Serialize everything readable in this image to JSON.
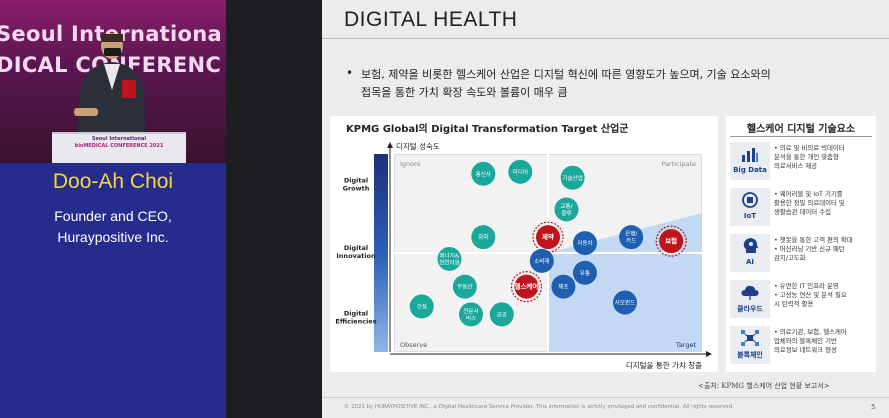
{
  "speaker": {
    "banner_line1": "Seoul Internationa",
    "banner_line2": "DICAL CONFERENC",
    "podium_line1": "Seoul International",
    "podium_line2": "bioMEDICAL CONFERENCE 2021",
    "podium_line3": "·",
    "name": "Doo-Ah Choi",
    "role": "Founder and CEO,",
    "organization": "Huraypositive Inc."
  },
  "slide": {
    "title": "DIGITAL HEALTH",
    "bullet_marker": "•",
    "bullet_line1": "보험, 제약을 비롯한 헬스케어 산업은 디지털 혁신에 따른 영향도가 높으며, 기술 요소와의",
    "bullet_line2": "접목을 통한 가치 확장 속도와 볼륨이 매우 큼",
    "source": "<출처: KPMG 헬스케어 산업 현황 보고서>",
    "footer": "© 2021 by HURAYPOSITIVE INC., a Digital Healthcare Service Provider. This information is strictly privileged and confidential.  All rights reserved.",
    "page_number": "5"
  },
  "chart_data": {
    "type": "scatter",
    "title": "KPMG Global의 Digital Transformation Target 산업군",
    "ylabel": "디지털 성숙도",
    "xlabel": "디지털을 통한 가치 창출",
    "y_levels": [
      "Digital Growth",
      "Digital Innovation",
      "Digital Efficiencies"
    ],
    "quadrants": [
      "Ignore",
      "Participate",
      "Observe",
      "Target"
    ],
    "colors": {
      "teal": "#1aa89a",
      "blue": "#1e5fb0",
      "red": "#c0141c",
      "navy": "#1f2f7a",
      "target_zone": "#c3d8f2"
    },
    "points": [
      {
        "label": "통신사",
        "x": 0.29,
        "y": 0.9,
        "color": "teal",
        "highlight": false
      },
      {
        "label": "미디어",
        "x": 0.41,
        "y": 0.91,
        "color": "teal",
        "highlight": false
      },
      {
        "label": "기술산업",
        "x": 0.58,
        "y": 0.88,
        "color": "teal",
        "highlight": false
      },
      {
        "label": "교통/물류",
        "x": 0.56,
        "y": 0.72,
        "color": "teal",
        "highlight": false
      },
      {
        "label": "화학",
        "x": 0.29,
        "y": 0.58,
        "color": "teal",
        "highlight": false
      },
      {
        "label": "제약",
        "x": 0.5,
        "y": 0.58,
        "color": "red",
        "highlight": true
      },
      {
        "label": "자동차",
        "x": 0.62,
        "y": 0.55,
        "color": "blue",
        "highlight": false
      },
      {
        "label": "은행/카드",
        "x": 0.77,
        "y": 0.58,
        "color": "blue",
        "highlight": false
      },
      {
        "label": "보험",
        "x": 0.9,
        "y": 0.56,
        "color": "red",
        "highlight": true
      },
      {
        "label": "에너지&천연자원",
        "x": 0.18,
        "y": 0.47,
        "color": "teal",
        "highlight": false
      },
      {
        "label": "소비재",
        "x": 0.48,
        "y": 0.46,
        "color": "blue",
        "highlight": false
      },
      {
        "label": "유통",
        "x": 0.62,
        "y": 0.4,
        "color": "blue",
        "highlight": false
      },
      {
        "label": "부동산",
        "x": 0.23,
        "y": 0.33,
        "color": "teal",
        "highlight": false
      },
      {
        "label": "헬스케어",
        "x": 0.43,
        "y": 0.33,
        "color": "red",
        "highlight": true
      },
      {
        "label": "제조",
        "x": 0.55,
        "y": 0.33,
        "color": "blue",
        "highlight": false
      },
      {
        "label": "건설",
        "x": 0.09,
        "y": 0.23,
        "color": "teal",
        "highlight": false
      },
      {
        "label": "전문서비스",
        "x": 0.25,
        "y": 0.19,
        "color": "teal",
        "highlight": false
      },
      {
        "label": "공공",
        "x": 0.35,
        "y": 0.19,
        "color": "teal",
        "highlight": false
      },
      {
        "label": "사모펀드",
        "x": 0.75,
        "y": 0.25,
        "color": "blue",
        "highlight": false
      }
    ]
  },
  "tech": {
    "title": "헬스케어 디지털 기술요소",
    "items": [
      {
        "name": "Big Data",
        "icon": "bar-chart-icon",
        "lines": [
          "• 의료 및 비의료 빅데이터",
          "  분석을 통한 개인 맞춤형",
          "  의료서비스 제공"
        ]
      },
      {
        "name": "IoT",
        "icon": "iot-chip-icon",
        "lines": [
          "• 웨어러블 및 IoT 기기를",
          "  활용한 정밀 의료데이터 및",
          "  생활습관 데이터 수집"
        ]
      },
      {
        "name": "AI",
        "icon": "ai-head-icon",
        "lines": [
          "• 챗봇을 통한 고객 편의 확대",
          "• 머신러닝 기반 신규 패턴",
          "  감지/고도화"
        ]
      },
      {
        "name": "클라우드",
        "icon": "cloud-icon",
        "lines": [
          "• 유연한 IT 인프라 운영",
          "• 고성능 연산 및 분석 필요",
          "  시 탄력적 활용"
        ]
      },
      {
        "name": "블록체인",
        "icon": "blockchain-icon",
        "lines": [
          "• 의료기관, 보험, 헬스케어",
          "  업체와의 블록체인 기반",
          "  의료정보 네트워크 형성"
        ]
      }
    ]
  }
}
